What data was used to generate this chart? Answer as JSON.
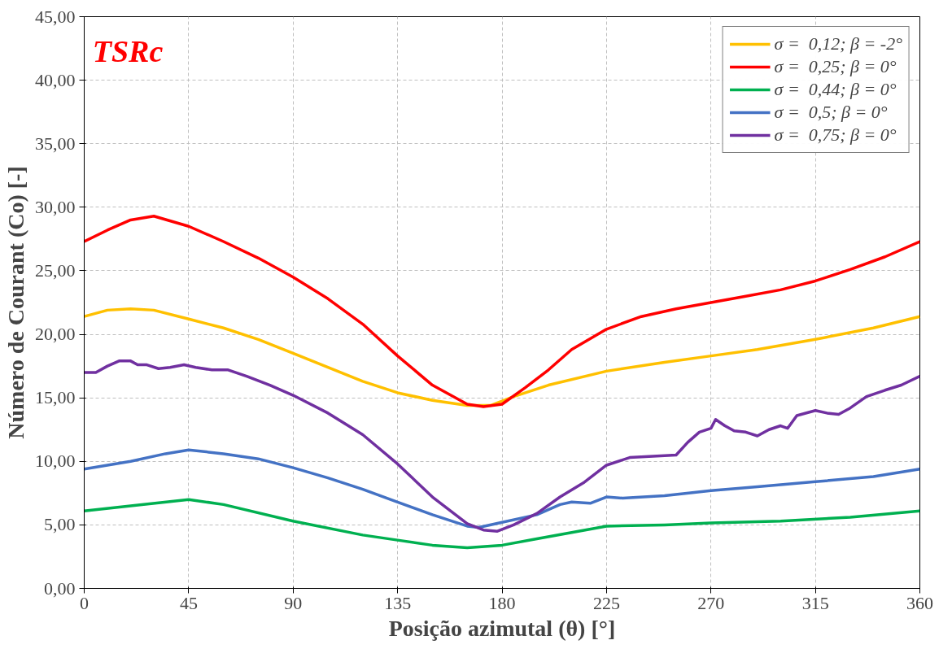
{
  "chart_data": {
    "type": "line",
    "xlabel": "Posição azimutal (θ) [°]",
    "ylabel": "Número de Courant (Co) [-]",
    "annotations": [
      "TSRc"
    ],
    "xlim": [
      0,
      360
    ],
    "xticks": [
      0,
      45,
      90,
      135,
      180,
      225,
      270,
      315,
      360
    ],
    "ylim": [
      0,
      45
    ],
    "yticks": [
      {
        "value": 0,
        "label": "0,00"
      },
      {
        "value": 5,
        "label": "5,00"
      },
      {
        "value": 10,
        "label": "10,00"
      },
      {
        "value": 15,
        "label": "15,00"
      },
      {
        "value": 20,
        "label": "20,00"
      },
      {
        "value": 25,
        "label": "25,00"
      },
      {
        "value": 30,
        "label": "30,00"
      },
      {
        "value": 35,
        "label": "35,00"
      },
      {
        "value": 40,
        "label": "40,00"
      },
      {
        "value": 45,
        "label": "45,00"
      }
    ],
    "grid": true,
    "legend": "top right",
    "line_style": "solid",
    "marker": "none",
    "series": [
      {
        "name": "σ =  0,12; β = -2°",
        "color": "#ffc000",
        "x": [
          0,
          10,
          20,
          30,
          45,
          60,
          75,
          90,
          105,
          120,
          135,
          150,
          165,
          175,
          185,
          200,
          225,
          250,
          270,
          290,
          315,
          340,
          360
        ],
        "values": [
          21.4,
          21.9,
          22.0,
          21.9,
          21.2,
          20.5,
          19.6,
          18.5,
          17.4,
          16.3,
          15.4,
          14.8,
          14.4,
          14.4,
          15.1,
          16.0,
          17.1,
          17.8,
          18.3,
          18.8,
          19.6,
          20.5,
          21.4
        ]
      },
      {
        "name": "σ =  0,25; β = 0°",
        "color": "#ff0000",
        "x": [
          0,
          10,
          20,
          30,
          45,
          60,
          75,
          90,
          105,
          120,
          135,
          150,
          165,
          172,
          180,
          190,
          200,
          210,
          225,
          240,
          255,
          270,
          285,
          300,
          315,
          330,
          345,
          360
        ],
        "values": [
          27.3,
          28.2,
          29.0,
          29.3,
          28.5,
          27.3,
          26.0,
          24.5,
          22.8,
          20.8,
          18.3,
          16.0,
          14.5,
          14.3,
          14.5,
          15.8,
          17.2,
          18.8,
          20.4,
          21.4,
          22.0,
          22.5,
          23.0,
          23.5,
          24.2,
          25.1,
          26.1,
          27.3
        ]
      },
      {
        "name": "σ =  0,44; β = 0°",
        "color": "#00b050",
        "x": [
          0,
          20,
          45,
          60,
          90,
          120,
          135,
          150,
          165,
          180,
          195,
          210,
          225,
          250,
          270,
          300,
          330,
          360
        ],
        "values": [
          6.1,
          6.5,
          7.0,
          6.6,
          5.3,
          4.2,
          3.8,
          3.4,
          3.2,
          3.4,
          3.9,
          4.4,
          4.9,
          5.0,
          5.15,
          5.3,
          5.6,
          6.1
        ]
      },
      {
        "name": "σ =  0,5; β = 0°",
        "color": "#4472c4",
        "x": [
          0,
          20,
          35,
          45,
          60,
          75,
          90,
          105,
          120,
          135,
          150,
          165,
          170,
          180,
          195,
          205,
          210,
          218,
          225,
          232,
          250,
          270,
          290,
          315,
          340,
          360
        ],
        "values": [
          9.4,
          10.0,
          10.6,
          10.9,
          10.6,
          10.2,
          9.5,
          8.7,
          7.8,
          6.8,
          5.8,
          4.9,
          4.8,
          5.2,
          5.8,
          6.6,
          6.8,
          6.7,
          7.2,
          7.1,
          7.3,
          7.7,
          8.0,
          8.4,
          8.8,
          9.4
        ]
      },
      {
        "name": "σ =  0,75; β = 0°",
        "color": "#7030a0",
        "x": [
          0,
          5,
          10,
          15,
          20,
          23,
          27,
          32,
          37,
          43,
          48,
          55,
          62,
          70,
          80,
          90,
          105,
          120,
          135,
          150,
          165,
          172,
          178,
          185,
          195,
          205,
          215,
          225,
          235,
          245,
          255,
          260,
          265,
          270,
          272,
          276,
          280,
          285,
          290,
          295,
          300,
          303,
          307,
          315,
          320,
          325,
          330,
          337,
          345,
          352,
          360
        ],
        "values": [
          17.0,
          17.0,
          17.5,
          17.9,
          17.9,
          17.6,
          17.6,
          17.3,
          17.4,
          17.6,
          17.4,
          17.2,
          17.2,
          16.7,
          16.0,
          15.2,
          13.8,
          12.1,
          9.8,
          7.2,
          5.1,
          4.6,
          4.5,
          5.0,
          5.9,
          7.2,
          8.3,
          9.7,
          10.3,
          10.4,
          10.5,
          11.5,
          12.3,
          12.6,
          13.3,
          12.8,
          12.4,
          12.3,
          12.0,
          12.5,
          12.8,
          12.6,
          13.6,
          14.0,
          13.8,
          13.7,
          14.2,
          15.1,
          15.6,
          16.0,
          16.7
        ]
      }
    ]
  }
}
